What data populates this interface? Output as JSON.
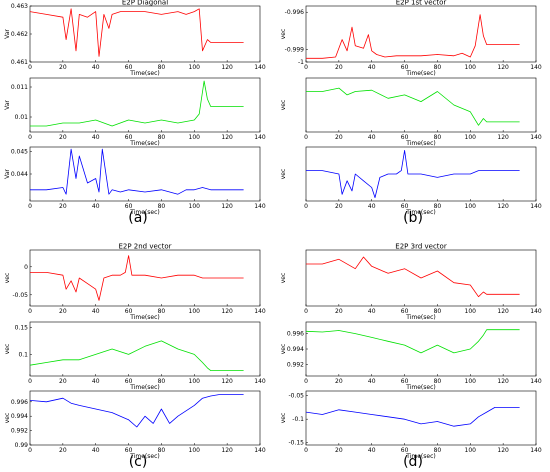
{
  "captions": [
    "(a)",
    "(b)",
    "(c)",
    "(d)"
  ],
  "colors": {
    "red": "#ff0000",
    "green": "#00e000",
    "blue": "#0000ff"
  },
  "chart_data": [
    {
      "type": "line",
      "group": 0,
      "row": 0,
      "title": "E2P Diagonal",
      "xlabel": "Time(sec)",
      "ylabel": "Var",
      "xlim": [
        0,
        140
      ],
      "ylim": [
        0.461,
        0.463
      ],
      "xticks": [
        0,
        20,
        40,
        60,
        80,
        100,
        120,
        140
      ],
      "yticks": [
        0.461,
        0.462,
        0.463
      ],
      "ytick_labels": [
        "0.461",
        "0.462",
        "0.463"
      ],
      "color": "#ff0000",
      "x": [
        0,
        10,
        20,
        22,
        25,
        28,
        30,
        35,
        40,
        42,
        45,
        48,
        50,
        55,
        60,
        70,
        80,
        90,
        95,
        100,
        103,
        105,
        108,
        110,
        115,
        120,
        130
      ],
      "y": [
        0.4628,
        0.4627,
        0.4626,
        0.4618,
        0.4629,
        0.4614,
        0.4627,
        0.4626,
        0.4628,
        0.4612,
        0.4627,
        0.4622,
        0.4627,
        0.4628,
        0.4628,
        0.4628,
        0.4627,
        0.4628,
        0.4627,
        0.4628,
        0.4629,
        0.4614,
        0.4618,
        0.4617,
        0.4617,
        0.4617,
        0.4617
      ]
    },
    {
      "type": "line",
      "group": 0,
      "row": 1,
      "title": "",
      "xlabel": "Time(sec)",
      "ylabel": "Var",
      "xlim": [
        0,
        140
      ],
      "ylim": [
        0.0095,
        0.0113
      ],
      "xticks": [
        0,
        20,
        40,
        60,
        80,
        100,
        120,
        140
      ],
      "yticks": [
        0.01,
        0.011
      ],
      "ytick_labels": [
        "0.01",
        "0.011"
      ],
      "color": "#00e000",
      "x": [
        0,
        10,
        20,
        30,
        40,
        50,
        60,
        70,
        80,
        90,
        100,
        103,
        106,
        108,
        110,
        115,
        120,
        130
      ],
      "y": [
        0.0097,
        0.0097,
        0.0098,
        0.0098,
        0.0099,
        0.0097,
        0.0099,
        0.0098,
        0.0099,
        0.0098,
        0.0099,
        0.0101,
        0.0112,
        0.0106,
        0.01035,
        0.01035,
        0.01035,
        0.01035
      ]
    },
    {
      "type": "line",
      "group": 0,
      "row": 2,
      "title": "",
      "xlabel": "Time(sec)",
      "ylabel": "Var",
      "xlim": [
        0,
        140
      ],
      "ylim": [
        0.0428,
        0.0452
      ],
      "xticks": [
        0,
        20,
        40,
        60,
        80,
        100,
        120,
        140
      ],
      "yticks": [
        0.044,
        0.045
      ],
      "ytick_labels": [
        "0.044",
        "0.045"
      ],
      "color": "#0000ff",
      "x": [
        0,
        10,
        20,
        22,
        25,
        28,
        30,
        35,
        40,
        42,
        44,
        48,
        50,
        55,
        60,
        70,
        80,
        90,
        95,
        100,
        105,
        110,
        115,
        120,
        130
      ],
      "y": [
        0.0433,
        0.0433,
        0.0434,
        0.0431,
        0.0451,
        0.0438,
        0.0448,
        0.0436,
        0.0438,
        0.0432,
        0.0451,
        0.0431,
        0.0433,
        0.0432,
        0.0433,
        0.0432,
        0.0433,
        0.0431,
        0.0433,
        0.0433,
        0.0434,
        0.0433,
        0.0433,
        0.0433,
        0.0433
      ]
    },
    {
      "type": "line",
      "group": 1,
      "row": 0,
      "title": "E2P 1st vector",
      "xlabel": "Time(sec)",
      "ylabel": "vec",
      "xlim": [
        0,
        140
      ],
      "ylim": [
        -1.0,
        -0.9955
      ],
      "xticks": [
        0,
        20,
        40,
        60,
        80,
        100,
        120,
        140
      ],
      "yticks": [
        -0.996,
        -0.999,
        -1.0
      ],
      "ytick_labels": [
        "-0.996",
        "-0.999",
        "-1"
      ],
      "color": "#ff0000",
      "x": [
        0,
        10,
        18,
        22,
        25,
        28,
        30,
        35,
        38,
        40,
        43,
        48,
        55,
        60,
        70,
        80,
        90,
        95,
        100,
        103,
        106,
        108,
        110,
        120,
        130
      ],
      "y": [
        -0.9997,
        -0.9997,
        -0.9996,
        -0.9982,
        -0.9991,
        -0.9972,
        -0.9987,
        -0.9989,
        -0.9978,
        -0.9991,
        -0.9994,
        -0.9996,
        -0.9995,
        -0.9995,
        -0.9995,
        -0.9994,
        -0.9995,
        -0.9993,
        -0.9996,
        -0.9987,
        -0.9962,
        -0.9979,
        -0.9986,
        -0.9986,
        -0.9986
      ]
    },
    {
      "type": "line",
      "group": 1,
      "row": 1,
      "title": "",
      "xlabel": "Time(sec)",
      "ylabel": "vec",
      "xlim": [
        0,
        140
      ],
      "ylim": [
        -0.05,
        0.03
      ],
      "xticks": [
        0,
        20,
        40,
        60,
        80,
        100,
        120,
        140
      ],
      "yticks": [],
      "ytick_labels": [],
      "color": "#00e000",
      "x": [
        0,
        10,
        20,
        25,
        30,
        40,
        50,
        60,
        70,
        80,
        90,
        100,
        105,
        108,
        110,
        120,
        130
      ],
      "y": [
        0.01,
        0.01,
        0.015,
        0.005,
        0.01,
        0.012,
        0.0,
        0.005,
        -0.005,
        0.01,
        -0.01,
        -0.02,
        -0.04,
        -0.03,
        -0.035,
        -0.035,
        -0.035
      ]
    },
    {
      "type": "line",
      "group": 1,
      "row": 2,
      "title": "",
      "xlabel": "Time(sec)",
      "ylabel": "vec",
      "xlim": [
        0,
        140
      ],
      "ylim": [
        -0.06,
        0.02
      ],
      "xticks": [
        0,
        20,
        40,
        60,
        80,
        100,
        120,
        140
      ],
      "yticks": [],
      "ytick_labels": [],
      "color": "#0000ff",
      "x": [
        0,
        10,
        20,
        22,
        25,
        28,
        30,
        35,
        40,
        42,
        45,
        50,
        55,
        58,
        60,
        62,
        65,
        70,
        80,
        90,
        100,
        105,
        110,
        120,
        130
      ],
      "y": [
        -0.015,
        -0.015,
        -0.02,
        -0.05,
        -0.03,
        -0.045,
        -0.02,
        -0.03,
        -0.04,
        -0.055,
        -0.025,
        -0.02,
        -0.02,
        -0.015,
        0.015,
        -0.02,
        -0.02,
        -0.02,
        -0.025,
        -0.02,
        -0.02,
        -0.015,
        -0.015,
        -0.015,
        -0.015
      ]
    },
    {
      "type": "line",
      "group": 2,
      "row": 0,
      "title": "E2P 2nd vector",
      "xlabel": "Time(sec)",
      "ylabel": "vec",
      "xlim": [
        0,
        140
      ],
      "ylim": [
        -0.07,
        0.03
      ],
      "xticks": [
        0,
        20,
        40,
        60,
        80,
        100,
        120,
        140
      ],
      "yticks": [
        0,
        -0.05
      ],
      "ytick_labels": [
        "0",
        "-0.05"
      ],
      "color": "#ff0000",
      "x": [
        0,
        10,
        20,
        22,
        25,
        28,
        30,
        35,
        40,
        42,
        45,
        50,
        55,
        58,
        60,
        62,
        65,
        70,
        80,
        90,
        100,
        105,
        110,
        120,
        130
      ],
      "y": [
        -0.01,
        -0.01,
        -0.015,
        -0.04,
        -0.025,
        -0.045,
        -0.02,
        -0.03,
        -0.04,
        -0.06,
        -0.02,
        -0.015,
        -0.015,
        -0.01,
        0.02,
        -0.015,
        -0.015,
        -0.015,
        -0.02,
        -0.015,
        -0.015,
        -0.02,
        -0.02,
        -0.02,
        -0.02
      ]
    },
    {
      "type": "line",
      "group": 2,
      "row": 1,
      "title": "",
      "xlabel": "Time(sec)",
      "ylabel": "vec",
      "xlim": [
        0,
        140
      ],
      "ylim": [
        0.06,
        0.16
      ],
      "xticks": [
        0,
        20,
        40,
        60,
        80,
        100,
        120,
        140
      ],
      "yticks": [
        0.15,
        0.1
      ],
      "ytick_labels": [
        "0.15",
        "0.1"
      ],
      "color": "#00e000",
      "x": [
        0,
        10,
        20,
        30,
        40,
        50,
        60,
        70,
        80,
        90,
        100,
        105,
        108,
        110,
        120,
        130
      ],
      "y": [
        0.08,
        0.085,
        0.09,
        0.09,
        0.1,
        0.11,
        0.1,
        0.115,
        0.125,
        0.11,
        0.1,
        0.085,
        0.075,
        0.07,
        0.07,
        0.07
      ]
    },
    {
      "type": "line",
      "group": 2,
      "row": 2,
      "title": "",
      "xlabel": "Time(sec)",
      "ylabel": "vec",
      "xlim": [
        0,
        140
      ],
      "ylim": [
        0.99,
        0.9975
      ],
      "xticks": [
        0,
        20,
        40,
        60,
        80,
        100,
        120,
        140
      ],
      "yticks": [
        0.996,
        0.994,
        0.992,
        0.99
      ],
      "ytick_labels": [
        "0.996",
        "0.994",
        "0.992",
        "0.99"
      ],
      "color": "#0000ff",
      "x": [
        0,
        10,
        20,
        25,
        30,
        40,
        50,
        55,
        60,
        65,
        70,
        75,
        80,
        85,
        90,
        100,
        105,
        110,
        115,
        120,
        130
      ],
      "y": [
        0.9962,
        0.996,
        0.9965,
        0.9958,
        0.9955,
        0.995,
        0.9945,
        0.994,
        0.9935,
        0.9925,
        0.994,
        0.993,
        0.995,
        0.993,
        0.994,
        0.9955,
        0.9965,
        0.9968,
        0.997,
        0.997,
        0.997
      ]
    },
    {
      "type": "line",
      "group": 3,
      "row": 0,
      "title": "E2P 3rd vector",
      "xlabel": "Time(sec)",
      "ylabel": "vec",
      "xlim": [
        0,
        140
      ],
      "ylim": [
        -0.07,
        0.05
      ],
      "xticks": [
        0,
        20,
        40,
        60,
        80,
        100,
        120,
        140
      ],
      "yticks": [],
      "ytick_labels": [],
      "color": "#ff0000",
      "x": [
        0,
        10,
        20,
        30,
        35,
        40,
        50,
        60,
        70,
        80,
        90,
        100,
        105,
        108,
        110,
        120,
        130
      ],
      "y": [
        0.02,
        0.02,
        0.03,
        0.01,
        0.035,
        0.015,
        0.0,
        0.01,
        -0.01,
        0.005,
        -0.02,
        -0.025,
        -0.05,
        -0.04,
        -0.045,
        -0.045,
        -0.045
      ]
    },
    {
      "type": "line",
      "group": 3,
      "row": 1,
      "title": "",
      "xlabel": "Time(sec)",
      "ylabel": "vec",
      "xlim": [
        0,
        140
      ],
      "ylim": [
        0.9905,
        0.9975
      ],
      "xticks": [
        0,
        20,
        40,
        60,
        80,
        100,
        120,
        140
      ],
      "yticks": [
        0.996,
        0.994,
        0.992
      ],
      "ytick_labels": [
        "0.996",
        "0.994",
        "0.992"
      ],
      "color": "#00e000",
      "x": [
        0,
        10,
        20,
        30,
        40,
        50,
        60,
        70,
        80,
        90,
        100,
        105,
        108,
        110,
        120,
        130
      ],
      "y": [
        0.9963,
        0.9962,
        0.9964,
        0.996,
        0.9955,
        0.995,
        0.9945,
        0.9935,
        0.9945,
        0.9935,
        0.994,
        0.995,
        0.9958,
        0.9965,
        0.9965,
        0.9965
      ]
    },
    {
      "type": "line",
      "group": 3,
      "row": 2,
      "title": "",
      "xlabel": "Time(sec)",
      "ylabel": "vec",
      "xlim": [
        0,
        140
      ],
      "ylim": [
        -0.155,
        -0.04
      ],
      "xticks": [
        0,
        20,
        40,
        60,
        80,
        100,
        120,
        140
      ],
      "yticks": [
        -0.05,
        -0.1,
        -0.15
      ],
      "ytick_labels": [
        "-0.05",
        "-0.1",
        "-0.15"
      ],
      "color": "#0000ff",
      "x": [
        0,
        10,
        20,
        30,
        40,
        50,
        60,
        70,
        80,
        90,
        100,
        105,
        110,
        115,
        120,
        130
      ],
      "y": [
        -0.085,
        -0.09,
        -0.08,
        -0.085,
        -0.09,
        -0.095,
        -0.1,
        -0.11,
        -0.105,
        -0.115,
        -0.11,
        -0.095,
        -0.085,
        -0.075,
        -0.075,
        -0.075
      ]
    }
  ]
}
